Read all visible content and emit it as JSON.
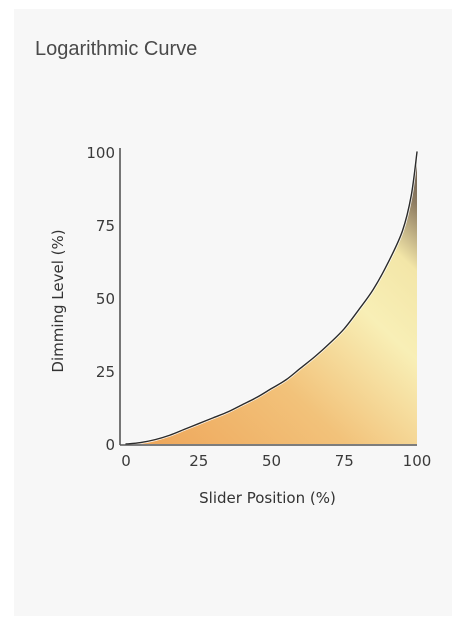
{
  "card": {
    "title": "Logarithmic Curve"
  },
  "chart_data": {
    "type": "area",
    "xlabel": "Slider Position (%)",
    "ylabel": "Dimming Level (%)",
    "xlim": [
      0,
      100
    ],
    "ylim": [
      0,
      100
    ],
    "x_ticks": [
      "0",
      "25",
      "50",
      "75",
      "100"
    ],
    "y_ticks": [
      "0",
      "25",
      "50",
      "75",
      "100"
    ],
    "grid": false,
    "series": [
      {
        "x": [
          0,
          5,
          10,
          15,
          20,
          25,
          30,
          35,
          40,
          45,
          50,
          55,
          60,
          65,
          70,
          75,
          80,
          85,
          90,
          95,
          98,
          100
        ],
        "y": [
          0,
          0.5,
          1.5,
          3,
          5,
          7,
          9,
          11,
          13.5,
          16,
          19,
          22,
          26,
          30,
          34.5,
          39.5,
          46,
          53,
          62,
          73,
          85,
          100
        ]
      }
    ],
    "colors": {
      "line": "#2b2b2b",
      "fill_low": "#eea65a",
      "fill_mid": "#f8efb6",
      "fill_high": "#6b5a4a",
      "axis": "#555555"
    }
  }
}
